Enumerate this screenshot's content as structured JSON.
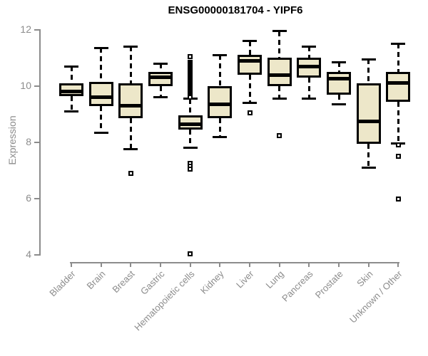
{
  "chart_data": {
    "type": "boxplot",
    "title": "ENSG00000181704 - YIPF6",
    "xlabel": "",
    "ylabel": "Expression",
    "ylim": [
      4,
      12
    ],
    "yticks": [
      4,
      6,
      8,
      10,
      12
    ],
    "grid": false,
    "legend": false,
    "categories": [
      "Bladder",
      "Brain",
      "Breast",
      "Gastric",
      "Hematopoietic cells",
      "Kidney",
      "Liver",
      "Lung",
      "Pancreas",
      "Prostate",
      "Skin",
      "Unknown / Other"
    ],
    "boxes": [
      {
        "category": "Bladder",
        "whisker_low": 9.1,
        "q1": 9.65,
        "median": 9.8,
        "q3": 10.1,
        "whisker_high": 10.7,
        "outliers": []
      },
      {
        "category": "Brain",
        "whisker_low": 8.35,
        "q1": 9.3,
        "median": 9.6,
        "q3": 10.15,
        "whisker_high": 11.35,
        "outliers": []
      },
      {
        "category": "Breast",
        "whisker_low": 7.75,
        "q1": 8.85,
        "median": 9.3,
        "q3": 10.1,
        "whisker_high": 11.4,
        "outliers": [
          6.9
        ]
      },
      {
        "category": "Gastric",
        "whisker_low": 9.6,
        "q1": 10.0,
        "median": 10.3,
        "q3": 10.5,
        "whisker_high": 10.8,
        "outliers": []
      },
      {
        "category": "Hematopoietic cells",
        "whisker_low": 7.8,
        "q1": 8.45,
        "median": 8.65,
        "q3": 8.95,
        "whisker_high": 9.55,
        "outliers": [
          11.05,
          10.85,
          10.8,
          10.75,
          10.7,
          10.65,
          10.6,
          10.55,
          10.5,
          10.45,
          10.4,
          10.35,
          10.3,
          10.25,
          10.2,
          10.15,
          10.1,
          10.05,
          10.0,
          9.95,
          9.9,
          9.85,
          9.8,
          9.75,
          9.7,
          9.65,
          9.6,
          7.25,
          7.15,
          7.05,
          4.05
        ]
      },
      {
        "category": "Kidney",
        "whisker_low": 8.2,
        "q1": 8.85,
        "median": 9.35,
        "q3": 10.0,
        "whisker_high": 11.1,
        "outliers": []
      },
      {
        "category": "Liver",
        "whisker_low": 9.4,
        "q1": 10.4,
        "median": 10.9,
        "q3": 11.1,
        "whisker_high": 11.6,
        "outliers": [
          9.05
        ]
      },
      {
        "category": "Lung",
        "whisker_low": 9.55,
        "q1": 10.0,
        "median": 10.4,
        "q3": 11.0,
        "whisker_high": 11.95,
        "outliers": [
          8.25
        ]
      },
      {
        "category": "Pancreas",
        "whisker_low": 9.55,
        "q1": 10.3,
        "median": 10.7,
        "q3": 11.0,
        "whisker_high": 11.4,
        "outliers": []
      },
      {
        "category": "Prostate",
        "whisker_low": 9.35,
        "q1": 9.7,
        "median": 10.25,
        "q3": 10.5,
        "whisker_high": 10.85,
        "outliers": []
      },
      {
        "category": "Skin",
        "whisker_low": 7.1,
        "q1": 7.95,
        "median": 8.75,
        "q3": 10.1,
        "whisker_high": 10.95,
        "outliers": []
      },
      {
        "category": "Unknown / Other",
        "whisker_low": 7.95,
        "q1": 9.45,
        "median": 10.1,
        "q3": 10.5,
        "whisker_high": 11.5,
        "outliers": [
          7.9,
          7.5,
          6.0
        ]
      }
    ],
    "colors": {
      "box_fill": "#ede7c9",
      "box_stroke": "#000000",
      "axis": "#8c8c8c",
      "tick_label": "#8c8c8c",
      "title": "#000000",
      "background": "#ffffff"
    }
  }
}
